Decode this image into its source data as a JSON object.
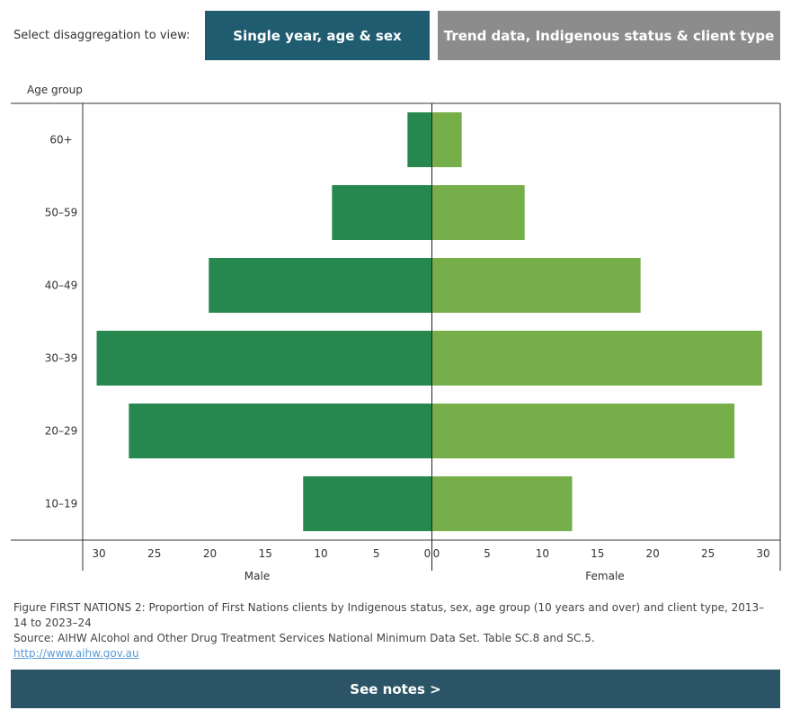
{
  "selector": {
    "label": "Select disaggregation to view:",
    "tabs": [
      {
        "label": "Single year, age & sex",
        "active": true,
        "color": "#1f5c70"
      },
      {
        "label": "Trend data, Indigenous status & client type",
        "active": false,
        "color": "#8c8c8c"
      }
    ]
  },
  "chart_data": {
    "type": "bar",
    "orientation": "horizontal-diverging",
    "y_axis_title": "Age group",
    "categories": [
      "60+",
      "50–59",
      "40–49",
      "30–39",
      "20–29",
      "10–19"
    ],
    "series": [
      {
        "name": "Male",
        "color": "#27884f",
        "values": [
          2.2,
          9.0,
          20.1,
          30.2,
          27.3,
          11.6
        ]
      },
      {
        "name": "Female",
        "color": "#76ae49",
        "values": [
          2.7,
          8.4,
          18.9,
          29.9,
          27.4,
          12.7
        ]
      }
    ],
    "xlim": [
      0,
      30
    ],
    "x_ticks": [
      30,
      25,
      20,
      15,
      10,
      5,
      0
    ],
    "male_label": "Male",
    "female_label": "Female",
    "male_ticks": [
      "30",
      "25",
      "20",
      "15",
      "10",
      "5",
      "0"
    ],
    "female_ticks": [
      "0",
      "5",
      "10",
      "15",
      "20",
      "25",
      "30"
    ]
  },
  "caption": {
    "figure": "Figure FIRST NATIONS 2: Proportion of First Nations clients by Indigenous status, sex, age group (10 years and over) and client type, 2013–14 to 2023–24",
    "source": "Source: AIHW Alcohol and Other Drug Treatment Services National Minimum Data Set. Table SC.8 and SC.5.",
    "link": "http://www.aihw.gov.au"
  },
  "notes_button": "See notes >"
}
